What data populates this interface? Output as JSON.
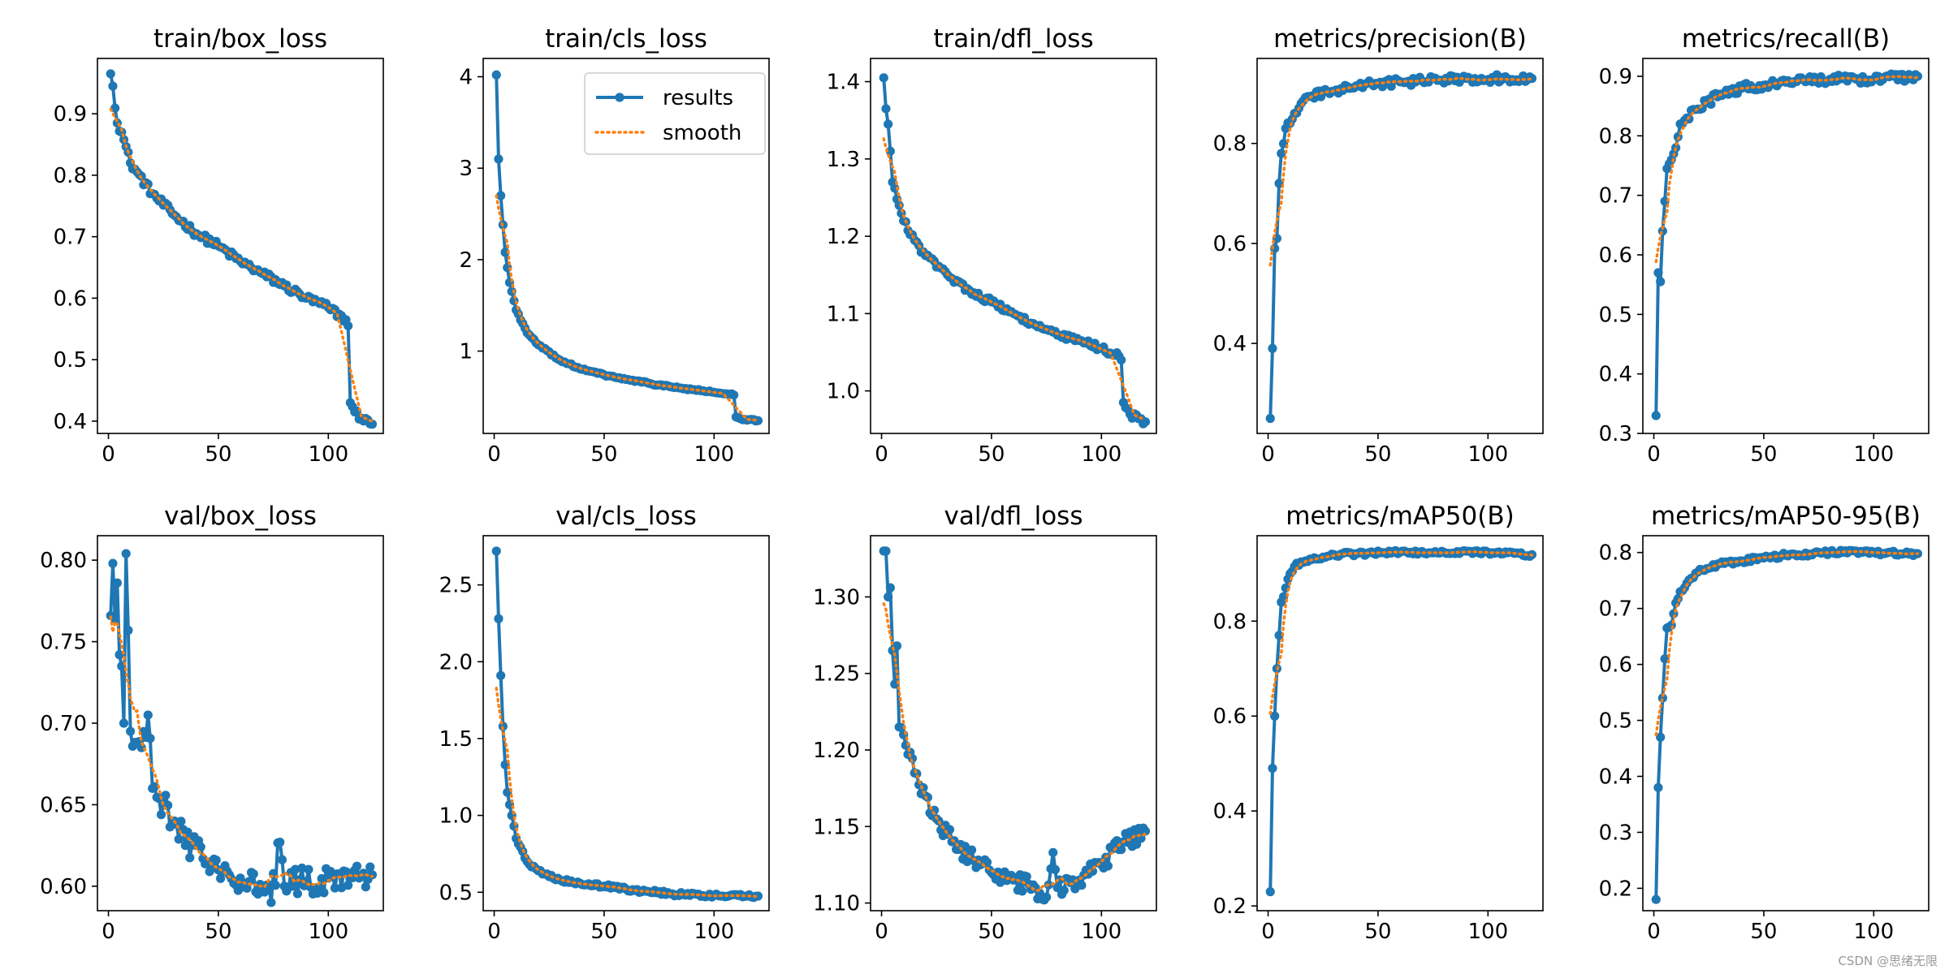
{
  "figure": {
    "watermark": "CSDN @思绪无限"
  },
  "legend": {
    "results_label": "results",
    "smooth_label": "smooth",
    "placement": "upper-right of train/cls_loss"
  },
  "colors": {
    "results": "#1f77b4",
    "smooth": "#ff7f0e",
    "axes": "#000000",
    "background": "#ffffff"
  },
  "chart_data": [
    {
      "type": "line",
      "title": "train/box_loss",
      "epochs": 120,
      "xlim": [
        -5,
        125
      ],
      "xticks": [
        0,
        50,
        100
      ],
      "ylim": [
        0.38,
        0.99
      ],
      "yticks": [
        0.4,
        0.5,
        0.6,
        0.7,
        0.8,
        0.9
      ],
      "anchors": [
        [
          1,
          0.965
        ],
        [
          2,
          0.945
        ],
        [
          4,
          0.885
        ],
        [
          6,
          0.87
        ],
        [
          10,
          0.82
        ],
        [
          20,
          0.77
        ],
        [
          30,
          0.735
        ],
        [
          40,
          0.705
        ],
        [
          50,
          0.685
        ],
        [
          60,
          0.66
        ],
        [
          70,
          0.64
        ],
        [
          80,
          0.62
        ],
        [
          90,
          0.6
        ],
        [
          100,
          0.585
        ],
        [
          108,
          0.565
        ],
        [
          109,
          0.555
        ],
        [
          110,
          0.43
        ],
        [
          112,
          0.415
        ],
        [
          115,
          0.405
        ],
        [
          120,
          0.395
        ]
      ],
      "noise": 0.006,
      "series": [
        {
          "name": "results"
        },
        {
          "name": "smooth"
        }
      ]
    },
    {
      "type": "line",
      "title": "train/cls_loss",
      "epochs": 120,
      "xlim": [
        -5,
        125
      ],
      "xticks": [
        0,
        50,
        100
      ],
      "ylim": [
        0.1,
        4.2
      ],
      "yticks": [
        1,
        2,
        3,
        4
      ],
      "anchors": [
        [
          1,
          4.02
        ],
        [
          2,
          3.1
        ],
        [
          3,
          2.7
        ],
        [
          4,
          2.38
        ],
        [
          5,
          2.08
        ],
        [
          7,
          1.75
        ],
        [
          10,
          1.45
        ],
        [
          15,
          1.2
        ],
        [
          20,
          1.07
        ],
        [
          30,
          0.9
        ],
        [
          40,
          0.8
        ],
        [
          50,
          0.74
        ],
        [
          60,
          0.69
        ],
        [
          70,
          0.65
        ],
        [
          80,
          0.61
        ],
        [
          90,
          0.58
        ],
        [
          100,
          0.55
        ],
        [
          109,
          0.52
        ],
        [
          110,
          0.28
        ],
        [
          113,
          0.25
        ],
        [
          120,
          0.24
        ]
      ],
      "noise": 0.01,
      "series": [
        {
          "name": "results"
        },
        {
          "name": "smooth"
        }
      ]
    },
    {
      "type": "line",
      "title": "train/dfl_loss",
      "epochs": 120,
      "xlim": [
        -5,
        125
      ],
      "xticks": [
        0,
        50,
        100
      ],
      "ylim": [
        0.945,
        1.43
      ],
      "yticks": [
        1.0,
        1.1,
        1.2,
        1.3,
        1.4
      ],
      "anchors": [
        [
          1,
          1.405
        ],
        [
          2,
          1.365
        ],
        [
          3,
          1.345
        ],
        [
          4,
          1.31
        ],
        [
          5,
          1.27
        ],
        [
          8,
          1.24
        ],
        [
          10,
          1.22
        ],
        [
          15,
          1.195
        ],
        [
          20,
          1.175
        ],
        [
          30,
          1.15
        ],
        [
          40,
          1.13
        ],
        [
          50,
          1.115
        ],
        [
          60,
          1.1
        ],
        [
          70,
          1.085
        ],
        [
          80,
          1.072
        ],
        [
          90,
          1.065
        ],
        [
          100,
          1.055
        ],
        [
          108,
          1.045
        ],
        [
          109,
          1.04
        ],
        [
          110,
          0.985
        ],
        [
          113,
          0.97
        ],
        [
          120,
          0.96
        ]
      ],
      "noise": 0.004,
      "series": [
        {
          "name": "results"
        },
        {
          "name": "smooth"
        }
      ]
    },
    {
      "type": "line",
      "title": "metrics/precision(B)",
      "epochs": 120,
      "xlim": [
        -5,
        125
      ],
      "xticks": [
        0,
        50,
        100
      ],
      "ylim": [
        0.22,
        0.97
      ],
      "yticks": [
        0.4,
        0.6,
        0.8
      ],
      "anchors": [
        [
          1,
          0.25
        ],
        [
          2,
          0.39
        ],
        [
          3,
          0.59
        ],
        [
          4,
          0.61
        ],
        [
          5,
          0.72
        ],
        [
          6,
          0.78
        ],
        [
          8,
          0.83
        ],
        [
          10,
          0.84
        ],
        [
          12,
          0.86
        ],
        [
          15,
          0.88
        ],
        [
          20,
          0.895
        ],
        [
          30,
          0.905
        ],
        [
          40,
          0.915
        ],
        [
          50,
          0.92
        ],
        [
          70,
          0.925
        ],
        [
          90,
          0.93
        ],
        [
          120,
          0.93
        ]
      ],
      "noise": 0.008,
      "series": [
        {
          "name": "results"
        },
        {
          "name": "smooth"
        }
      ]
    },
    {
      "type": "line",
      "title": "metrics/recall(B)",
      "epochs": 120,
      "xlim": [
        -5,
        125
      ],
      "xticks": [
        0,
        50,
        100
      ],
      "ylim": [
        0.3,
        0.93
      ],
      "yticks": [
        0.3,
        0.4,
        0.5,
        0.6,
        0.7,
        0.8,
        0.9
      ],
      "anchors": [
        [
          1,
          0.33
        ],
        [
          2,
          0.57
        ],
        [
          3,
          0.555
        ],
        [
          4,
          0.64
        ],
        [
          5,
          0.69
        ],
        [
          6,
          0.745
        ],
        [
          8,
          0.76
        ],
        [
          10,
          0.78
        ],
        [
          12,
          0.82
        ],
        [
          15,
          0.83
        ],
        [
          20,
          0.845
        ],
        [
          30,
          0.87
        ],
        [
          40,
          0.88
        ],
        [
          50,
          0.885
        ],
        [
          60,
          0.89
        ],
        [
          80,
          0.895
        ],
        [
          100,
          0.895
        ],
        [
          120,
          0.9
        ]
      ],
      "noise": 0.007,
      "series": [
        {
          "name": "results"
        },
        {
          "name": "smooth"
        }
      ]
    },
    {
      "type": "line",
      "title": "val/box_loss",
      "epochs": 120,
      "xlim": [
        -5,
        125
      ],
      "xticks": [
        0,
        50,
        100
      ],
      "ylim": [
        0.585,
        0.815
      ],
      "yticks": [
        0.6,
        0.65,
        0.7,
        0.75,
        0.8
      ],
      "anchors": [
        [
          1,
          0.766
        ],
        [
          2,
          0.798
        ],
        [
          3,
          0.764
        ],
        [
          4,
          0.786
        ],
        [
          5,
          0.742
        ],
        [
          6,
          0.735
        ],
        [
          7,
          0.7
        ],
        [
          8,
          0.804
        ],
        [
          10,
          0.695
        ],
        [
          15,
          0.685
        ],
        [
          18,
          0.705
        ],
        [
          20,
          0.66
        ],
        [
          25,
          0.65
        ],
        [
          30,
          0.64
        ],
        [
          35,
          0.625
        ],
        [
          40,
          0.625
        ],
        [
          45,
          0.615
        ],
        [
          50,
          0.61
        ],
        [
          55,
          0.607
        ],
        [
          60,
          0.605
        ],
        [
          70,
          0.6
        ],
        [
          74,
          0.59
        ],
        [
          78,
          0.627
        ],
        [
          80,
          0.6
        ],
        [
          90,
          0.603
        ],
        [
          100,
          0.605
        ],
        [
          110,
          0.608
        ],
        [
          120,
          0.607
        ]
      ],
      "noise": 0.009,
      "series": [
        {
          "name": "results"
        },
        {
          "name": "smooth"
        }
      ]
    },
    {
      "type": "line",
      "title": "val/cls_loss",
      "epochs": 120,
      "xlim": [
        -5,
        125
      ],
      "xticks": [
        0,
        50,
        100
      ],
      "ylim": [
        0.38,
        2.82
      ],
      "yticks": [
        0.5,
        1.0,
        1.5,
        2.0,
        2.5
      ],
      "anchors": [
        [
          1,
          2.72
        ],
        [
          2,
          2.28
        ],
        [
          3,
          1.91
        ],
        [
          4,
          1.58
        ],
        [
          5,
          1.33
        ],
        [
          6,
          1.15
        ],
        [
          8,
          1.0
        ],
        [
          10,
          0.85
        ],
        [
          15,
          0.7
        ],
        [
          20,
          0.64
        ],
        [
          30,
          0.58
        ],
        [
          40,
          0.55
        ],
        [
          50,
          0.54
        ],
        [
          60,
          0.52
        ],
        [
          70,
          0.505
        ],
        [
          80,
          0.49
        ],
        [
          100,
          0.48
        ],
        [
          120,
          0.475
        ]
      ],
      "noise": 0.012,
      "series": [
        {
          "name": "results"
        },
        {
          "name": "smooth"
        }
      ]
    },
    {
      "type": "line",
      "title": "val/dfl_loss",
      "epochs": 120,
      "xlim": [
        -5,
        125
      ],
      "xticks": [
        0,
        50,
        100
      ],
      "ylim": [
        1.095,
        1.34
      ],
      "yticks": [
        1.1,
        1.15,
        1.2,
        1.25,
        1.3
      ],
      "anchors": [
        [
          1,
          1.33
        ],
        [
          2,
          1.33
        ],
        [
          3,
          1.3
        ],
        [
          4,
          1.306
        ],
        [
          5,
          1.265
        ],
        [
          6,
          1.243
        ],
        [
          7,
          1.268
        ],
        [
          8,
          1.215
        ],
        [
          10,
          1.21
        ],
        [
          15,
          1.185
        ],
        [
          20,
          1.17
        ],
        [
          25,
          1.155
        ],
        [
          30,
          1.145
        ],
        [
          35,
          1.135
        ],
        [
          40,
          1.13
        ],
        [
          45,
          1.125
        ],
        [
          50,
          1.12
        ],
        [
          60,
          1.115
        ],
        [
          70,
          1.11
        ],
        [
          74,
          1.102
        ],
        [
          78,
          1.133
        ],
        [
          80,
          1.11
        ],
        [
          90,
          1.115
        ],
        [
          100,
          1.125
        ],
        [
          110,
          1.14
        ],
        [
          120,
          1.147
        ]
      ],
      "noise": 0.006,
      "series": [
        {
          "name": "results"
        },
        {
          "name": "smooth"
        }
      ]
    },
    {
      "type": "line",
      "title": "metrics/mAP50(B)",
      "epochs": 120,
      "xlim": [
        -5,
        125
      ],
      "xticks": [
        0,
        50,
        100
      ],
      "ylim": [
        0.19,
        0.98
      ],
      "yticks": [
        0.2,
        0.4,
        0.6,
        0.8
      ],
      "anchors": [
        [
          1,
          0.23
        ],
        [
          2,
          0.49
        ],
        [
          3,
          0.6
        ],
        [
          4,
          0.7
        ],
        [
          5,
          0.77
        ],
        [
          6,
          0.84
        ],
        [
          8,
          0.87
        ],
        [
          10,
          0.9
        ],
        [
          12,
          0.915
        ],
        [
          15,
          0.925
        ],
        [
          20,
          0.93
        ],
        [
          30,
          0.94
        ],
        [
          40,
          0.942
        ],
        [
          60,
          0.945
        ],
        [
          80,
          0.945
        ],
        [
          100,
          0.945
        ],
        [
          120,
          0.94
        ]
      ],
      "noise": 0.004,
      "series": [
        {
          "name": "results"
        },
        {
          "name": "smooth"
        }
      ]
    },
    {
      "type": "line",
      "title": "metrics/mAP50-95(B)",
      "epochs": 120,
      "xlim": [
        -5,
        125
      ],
      "xticks": [
        0,
        50,
        100
      ],
      "ylim": [
        0.16,
        0.83
      ],
      "yticks": [
        0.2,
        0.3,
        0.4,
        0.5,
        0.6,
        0.7,
        0.8
      ],
      "anchors": [
        [
          1,
          0.18
        ],
        [
          2,
          0.38
        ],
        [
          3,
          0.47
        ],
        [
          4,
          0.54
        ],
        [
          5,
          0.61
        ],
        [
          6,
          0.665
        ],
        [
          8,
          0.67
        ],
        [
          10,
          0.71
        ],
        [
          12,
          0.73
        ],
        [
          15,
          0.745
        ],
        [
          20,
          0.765
        ],
        [
          30,
          0.78
        ],
        [
          40,
          0.785
        ],
        [
          50,
          0.79
        ],
        [
          60,
          0.795
        ],
        [
          80,
          0.8
        ],
        [
          100,
          0.8
        ],
        [
          120,
          0.798
        ]
      ],
      "noise": 0.004,
      "series": [
        {
          "name": "results"
        },
        {
          "name": "smooth"
        }
      ]
    }
  ]
}
